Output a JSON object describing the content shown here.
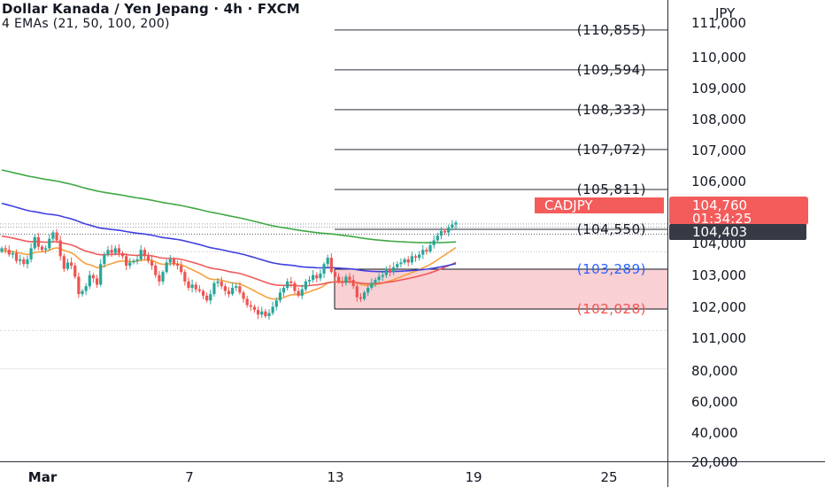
{
  "header": {
    "title": "Dollar Kanada / Yen Jepang · 4h · FXCM",
    "indicator": "4 EMAs (21, 50, 100, 200)"
  },
  "chart_data": {
    "type": "candlestick",
    "symbol": "CADJPY",
    "axis_unit": "JPY",
    "grid": false,
    "y_ticks_upper": [
      "111,000",
      "110,000",
      "109,000",
      "108,000",
      "107,000",
      "106,000",
      "104,000",
      "103,000",
      "102,000",
      "101,000"
    ],
    "y_ticks_lower": [
      "80,000",
      "60,000",
      "40,000",
      "20,000"
    ],
    "x_ticks": [
      "Mar",
      "7",
      "13",
      "19",
      "25"
    ],
    "levels": [
      {
        "value": 110.855,
        "label": "(110,855)"
      },
      {
        "value": 109.594,
        "label": "(109,594)"
      },
      {
        "value": 108.333,
        "label": "(108,333)"
      },
      {
        "value": 107.072,
        "label": "(107,072)"
      },
      {
        "value": 105.811,
        "label": "(105,811)"
      },
      {
        "value": 104.55,
        "label": "(104,550)"
      },
      {
        "value": 103.289,
        "label": "(103,289)"
      },
      {
        "value": 102.028,
        "label": "(102,028)"
      }
    ],
    "price_label": {
      "symbol": "CADJPY",
      "price": "104,760",
      "countdown": "01:34:25"
    },
    "marker_label": {
      "price": "104,403"
    },
    "zone": {
      "from": 102.028,
      "to": 103.289
    },
    "closes": [
      103.95,
      103.9,
      103.75,
      103.8,
      103.55,
      103.6,
      103.45,
      103.6,
      103.95,
      104.3,
      104.0,
      103.9,
      103.95,
      104.25,
      104.45,
      104.2,
      103.7,
      103.3,
      103.5,
      103.4,
      103.05,
      102.5,
      102.6,
      102.75,
      103.1,
      103.0,
      102.8,
      103.45,
      103.75,
      103.9,
      103.8,
      103.95,
      103.8,
      103.7,
      103.4,
      103.5,
      103.55,
      103.6,
      103.9,
      103.7,
      103.55,
      103.4,
      103.1,
      102.9,
      103.2,
      103.5,
      103.6,
      103.45,
      103.4,
      103.2,
      102.9,
      102.7,
      102.8,
      102.65,
      102.6,
      102.45,
      102.3,
      102.5,
      102.85,
      102.9,
      102.75,
      102.6,
      102.5,
      102.7,
      102.75,
      102.55,
      102.35,
      102.15,
      102.1,
      102.0,
      101.85,
      101.95,
      101.8,
      101.9,
      102.1,
      102.3,
      102.55,
      102.7,
      102.9,
      102.85,
      102.6,
      102.45,
      102.65,
      102.9,
      102.95,
      103.1,
      103.0,
      103.15,
      103.45,
      103.65,
      103.2,
      103.05,
      102.9,
      102.85,
      103.05,
      102.95,
      102.75,
      102.4,
      102.35,
      102.55,
      102.7,
      102.85,
      102.95,
      103.05,
      103.1,
      103.3,
      103.2,
      103.35,
      103.45,
      103.5,
      103.6,
      103.5,
      103.7,
      103.65,
      103.75,
      103.9,
      103.85,
      104.05,
      104.2,
      104.35,
      104.5,
      104.45,
      104.6,
      104.7,
      104.76
    ]
  }
}
